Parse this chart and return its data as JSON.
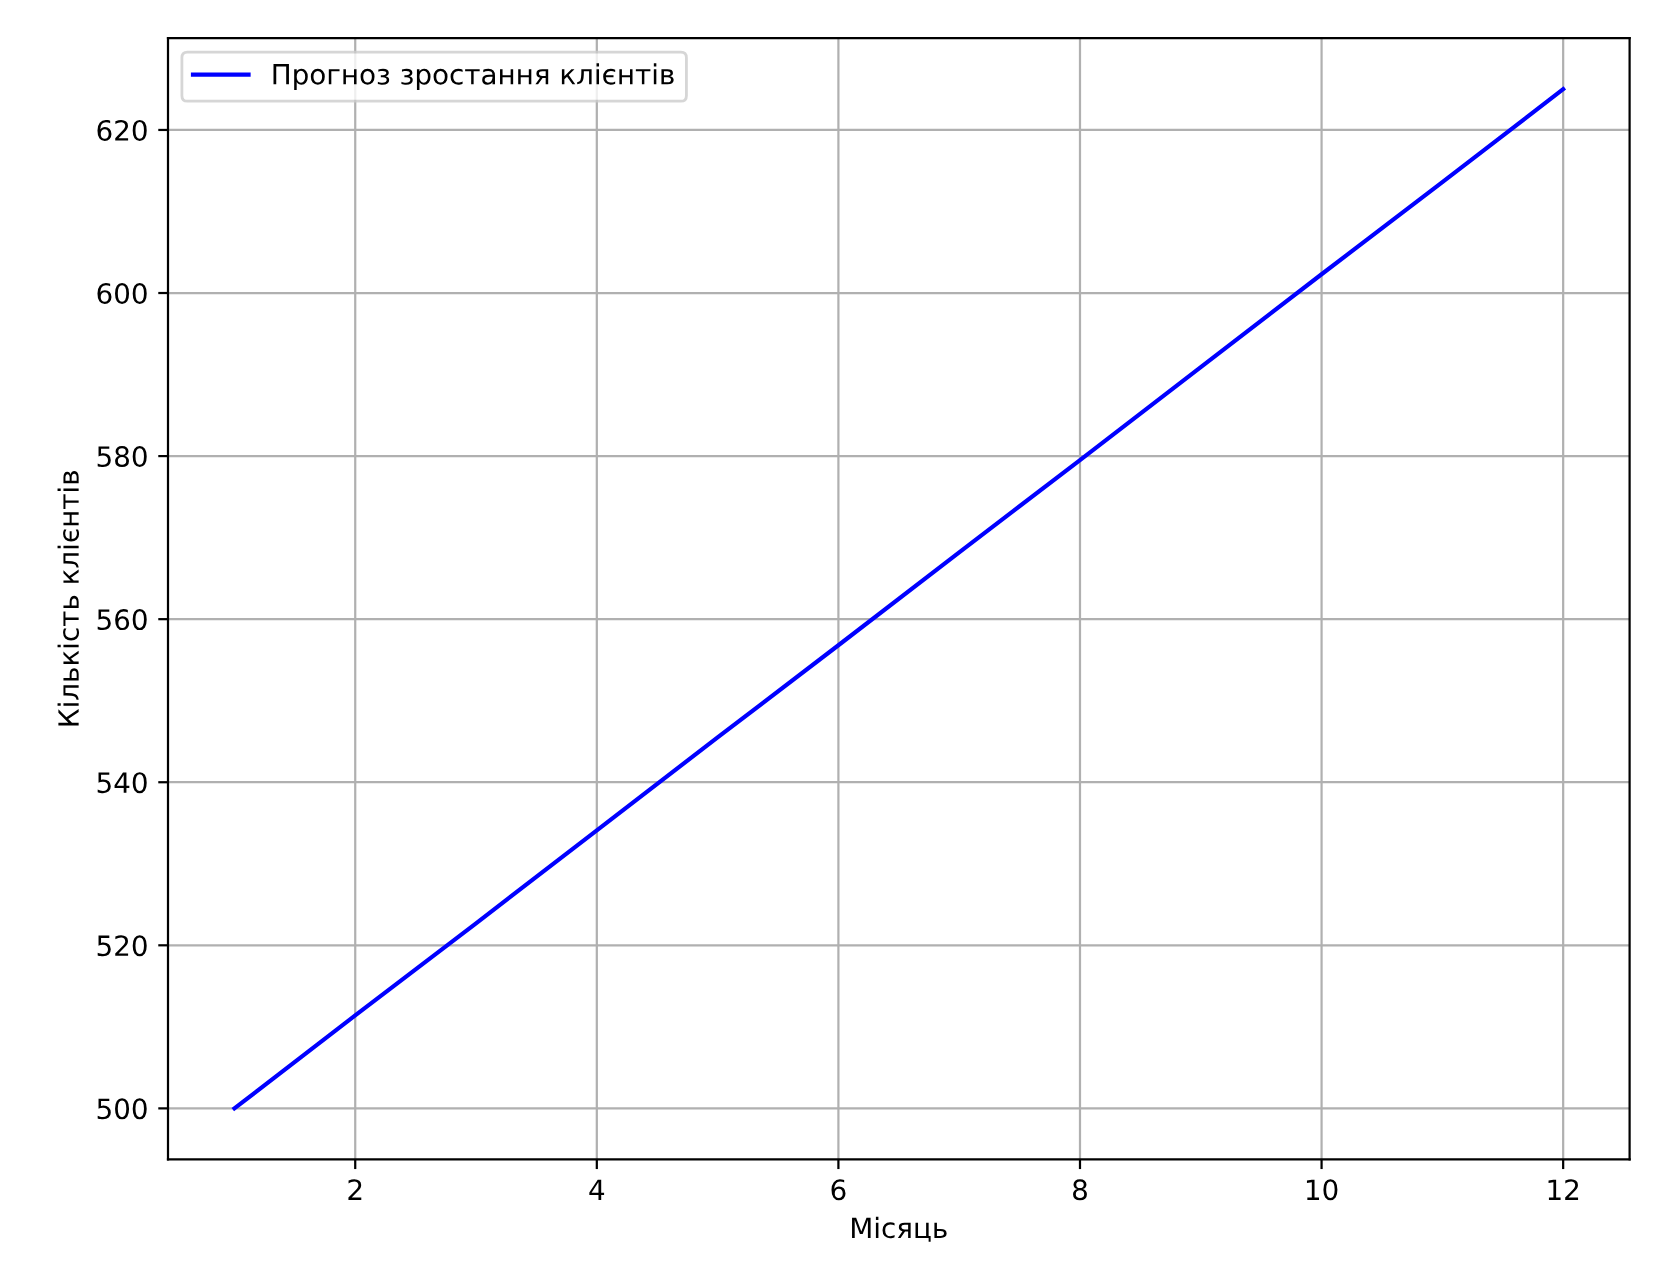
{
  "chart_data": {
    "type": "line",
    "xlabel": "Місяць",
    "ylabel": "Кількість клієнтів",
    "x": [
      1,
      2,
      3,
      4,
      5,
      6,
      7,
      8,
      9,
      10,
      11,
      12
    ],
    "series": [
      {
        "name": "Прогноз зростання клієнтів",
        "color": "#0000ff",
        "values": [
          500,
          511.4,
          522.7,
          534.1,
          545.5,
          556.8,
          568.2,
          579.5,
          590.9,
          602.3,
          613.6,
          625
        ]
      }
    ],
    "xlim": [
      0.45,
      12.55
    ],
    "ylim": [
      493.75,
      631.25
    ],
    "xticks": [
      2,
      4,
      6,
      8,
      10,
      12
    ],
    "yticks": [
      500,
      520,
      540,
      560,
      580,
      600,
      620
    ],
    "grid": true,
    "legend": "top left",
    "marker": "none",
    "line_style": "solid"
  }
}
